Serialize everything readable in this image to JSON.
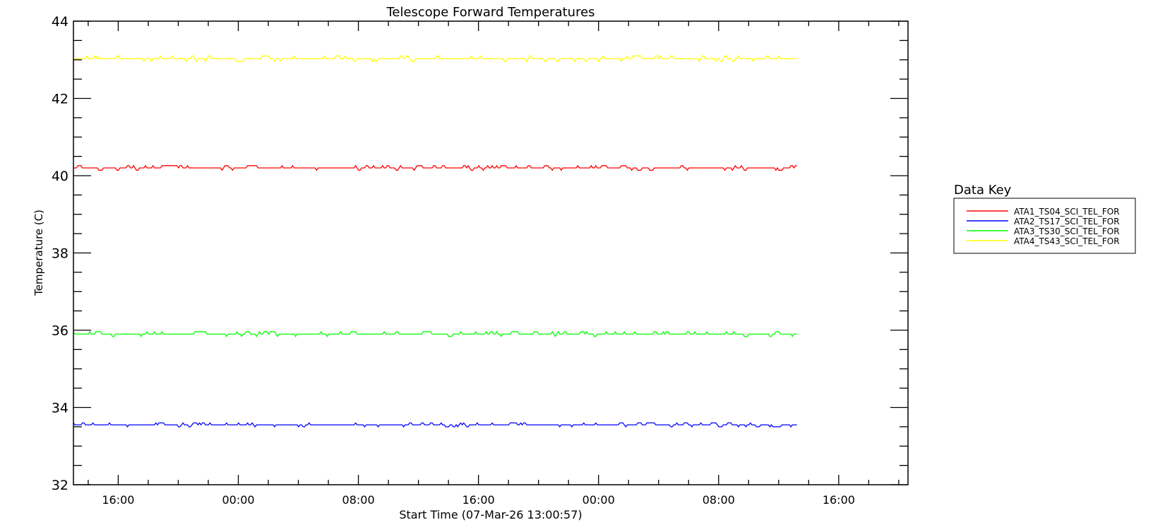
{
  "chart_data": {
    "type": "line",
    "title": "Telescope Forward Temperatures",
    "xlabel": "Start Time (07-Mar-26 13:00:57)",
    "ylabel": "Temperature (C)",
    "start_time": "07-Mar-26 13:00:57",
    "x_units": "hours since start",
    "xlim": [
      0,
      55.6
    ],
    "ylim": [
      32,
      44
    ],
    "y_ticks": [
      32,
      34,
      36,
      38,
      40,
      42,
      44
    ],
    "y_tick_labels": [
      "32",
      "34",
      "36",
      "38",
      "40",
      "42",
      "44"
    ],
    "y_minor_step": 0.5,
    "x_tick_hours": [
      2.984,
      10.984,
      18.984,
      26.984,
      34.984,
      42.984,
      50.984
    ],
    "x_tick_labels": [
      "16:00",
      "00:00",
      "08:00",
      "16:00",
      "00:00",
      "08:00",
      "16:00"
    ],
    "x_minor_step_hours": 2,
    "data_end_hours": 48.3,
    "sample_step_hours": 0.1,
    "grid": false,
    "legend": {
      "title": "Data Key",
      "placement": "right"
    },
    "series": [
      {
        "name": "ATA1_TS04_SCI_TEL_FOR",
        "color": "#ff0000",
        "base": 40.2,
        "step": 0.06,
        "seed": 11
      },
      {
        "name": "ATA2_TS17_SCI_TEL_FOR",
        "color": "#0000ff",
        "base": 33.55,
        "step": 0.05,
        "seed": 23
      },
      {
        "name": "ATA3_TS30_SCI_TEL_FOR",
        "color": "#00ff00",
        "base": 35.9,
        "step": 0.06,
        "seed": 37
      },
      {
        "name": "ATA4_TS43_SCI_TEL_FOR",
        "color": "#ffff00",
        "base": 43.03,
        "step": 0.07,
        "seed": 51
      }
    ]
  }
}
